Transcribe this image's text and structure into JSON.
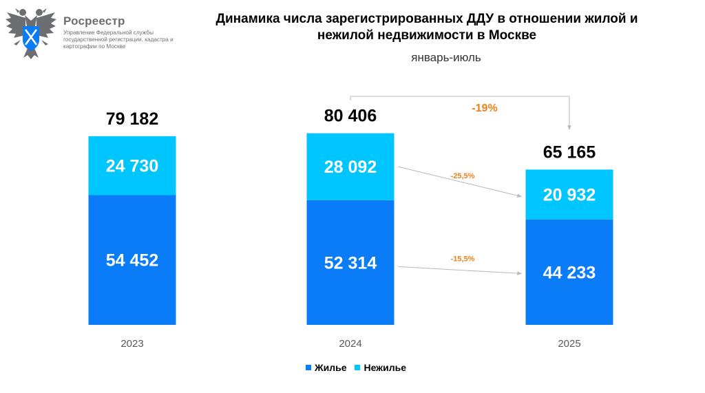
{
  "header": {
    "logo_title": "Росреестр",
    "logo_subtitle": "Управление Федеральной службы государственной регистрации, кадастра и картографии по Москве",
    "logo_icon": "double-headed-eagle-emblem-icon"
  },
  "chart_data": {
    "type": "bar",
    "stacked": true,
    "title": "Динамика числа зарегистрированных ДДУ в отношении жилой и нежилой недвижимости в Москве",
    "subtitle": "январь-июль",
    "categories": [
      "2023",
      "2024",
      "2025"
    ],
    "series": [
      {
        "name": "Жилье",
        "color": "#0a7cf7",
        "values": [
          54452,
          52314,
          44233
        ],
        "labels": [
          "54 452",
          "52 314",
          "44 233"
        ]
      },
      {
        "name": "Нежилье",
        "color": "#00c6ff",
        "values": [
          24730,
          28092,
          20932
        ],
        "labels": [
          "24 730",
          "28 092",
          "20 932"
        ]
      }
    ],
    "totals": [
      79182,
      80406,
      65165
    ],
    "total_labels": [
      "79 182",
      "80 406",
      "65 165"
    ],
    "annotations": [
      {
        "text": "-19%",
        "from": "2024",
        "to": "2025",
        "segment": "total"
      },
      {
        "text": "-25,5%",
        "from": "2024",
        "to": "2025",
        "segment": "Нежилье"
      },
      {
        "text": "-15,5%",
        "from": "2024",
        "to": "2025",
        "segment": "Жилье"
      }
    ],
    "legend_position": "bottom-center",
    "grid": false
  },
  "colors": {
    "annotation": "#f07f1a",
    "arrow": "#b8b8b8",
    "axis_label": "#595959"
  }
}
